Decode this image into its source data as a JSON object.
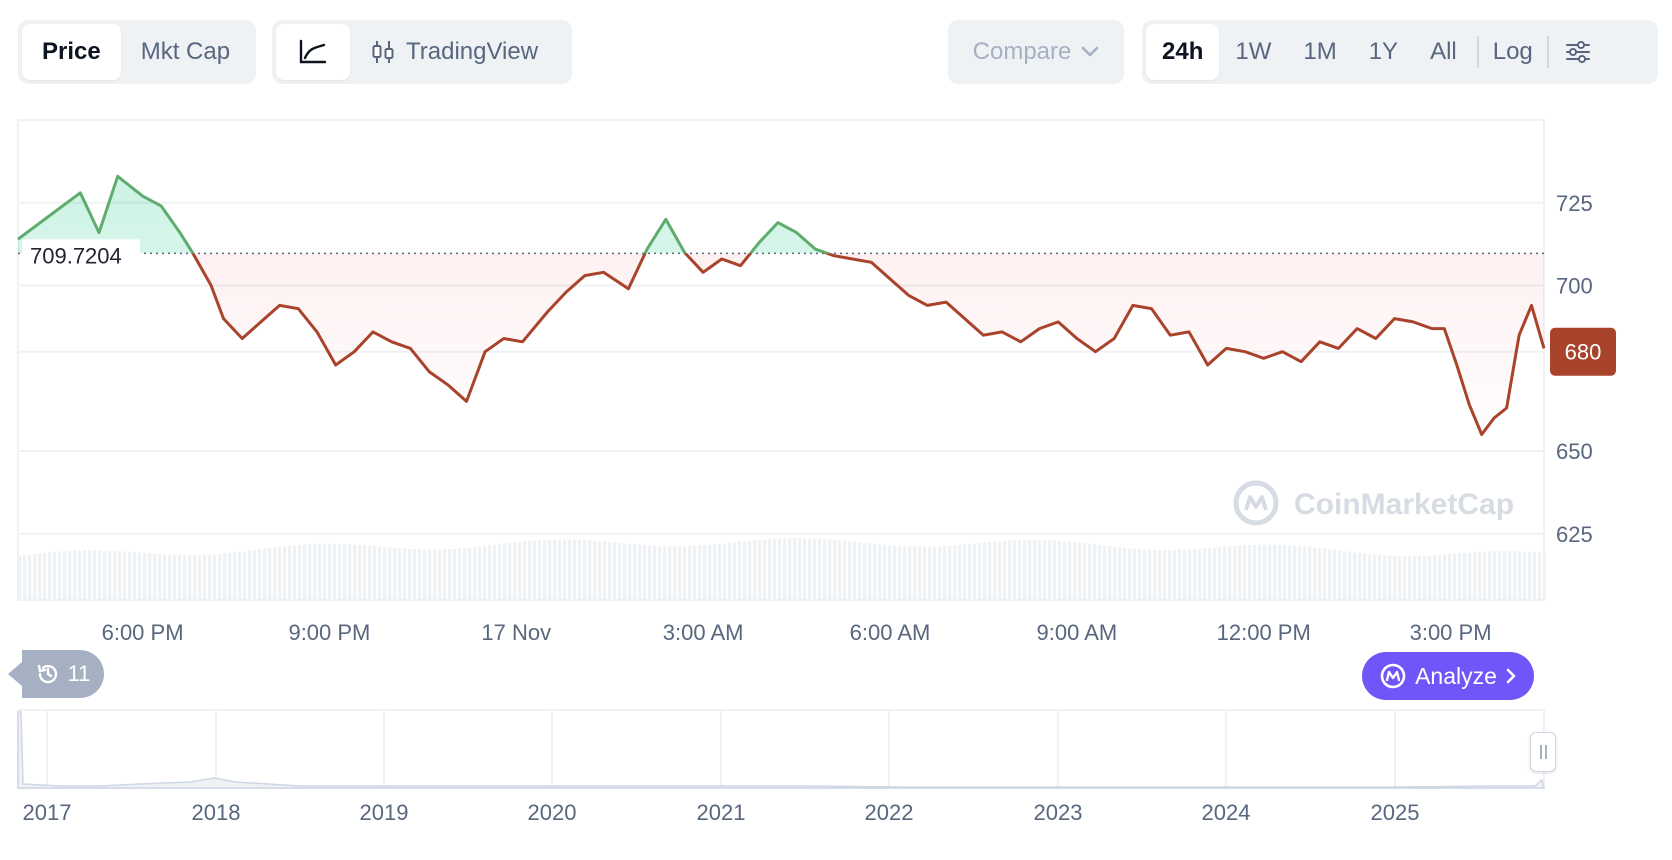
{
  "toolbar": {
    "price_label": "Price",
    "mktcap_label": "Mkt Cap",
    "tradingview_label": "TradingView",
    "compare_label": "Compare",
    "ranges": [
      "24h",
      "1W",
      "1M",
      "1Y",
      "All"
    ],
    "active_range": "24h",
    "log_label": "Log"
  },
  "badges": {
    "history_count": "11",
    "analyze_label": "Analyze"
  },
  "watermark": "CoinMarketCap",
  "colors": {
    "up": "#16c784",
    "up_line": "#5fad6e",
    "down_line": "#a9432c",
    "current_tag": "#a9432c",
    "accent": "#6e56f8"
  },
  "chart_data": {
    "type": "area",
    "baseline": 709.7204,
    "baseline_label": "709.7204",
    "current_price": 680,
    "current_price_label": "680",
    "ylim": [
      605,
      750
    ],
    "yticks": [
      725,
      700,
      680,
      650,
      625
    ],
    "ytick_labels": [
      "725",
      "700",
      "",
      "650",
      "625"
    ],
    "x_range": [
      16.0,
      40.5
    ],
    "xticks": [
      18,
      21,
      24,
      27,
      30,
      33,
      36,
      39
    ],
    "xtick_labels": [
      "6:00 PM",
      "9:00 PM",
      "17 Nov",
      "3:00 AM",
      "6:00 AM",
      "9:00 AM",
      "12:00 PM",
      "3:00 PM"
    ],
    "x": [
      16.0,
      16.5,
      17.0,
      17.3,
      17.6,
      18.0,
      18.3,
      18.6,
      18.8,
      19.1,
      19.3,
      19.6,
      19.9,
      20.2,
      20.5,
      20.8,
      21.1,
      21.4,
      21.7,
      22.0,
      22.3,
      22.6,
      22.9,
      23.2,
      23.5,
      23.8,
      24.1,
      24.5,
      24.8,
      25.1,
      25.4,
      25.8,
      26.1,
      26.4,
      26.7,
      27.0,
      27.3,
      27.6,
      27.9,
      28.2,
      28.5,
      28.8,
      29.1,
      29.4,
      29.7,
      30.0,
      30.3,
      30.6,
      30.9,
      31.2,
      31.5,
      31.8,
      32.1,
      32.4,
      32.7,
      33.0,
      33.3,
      33.6,
      33.9,
      34.2,
      34.5,
      34.8,
      35.1,
      35.4,
      35.7,
      36.0,
      36.3,
      36.6,
      36.9,
      37.2,
      37.5,
      37.8,
      38.1,
      38.4,
      38.7,
      38.9,
      39.1,
      39.3,
      39.5,
      39.7,
      39.9,
      40.1,
      40.3,
      40.5
    ],
    "y": [
      714,
      721,
      728,
      716,
      733,
      727,
      724,
      716,
      710,
      700,
      690,
      684,
      689,
      694,
      693,
      686,
      676,
      680,
      686,
      683,
      681,
      674,
      670,
      665,
      680,
      684,
      683,
      692,
      698,
      703,
      704,
      699,
      711,
      720,
      710,
      704,
      708,
      706,
      713,
      719,
      716,
      711,
      709,
      708,
      707,
      702,
      697,
      694,
      695,
      690,
      685,
      686,
      683,
      687,
      689,
      684,
      680,
      684,
      694,
      693,
      685,
      686,
      676,
      681,
      680,
      678,
      680,
      677,
      683,
      681,
      687,
      684,
      690,
      689,
      687,
      687,
      676,
      664,
      655,
      660,
      663,
      685,
      694,
      681
    ]
  }
}
